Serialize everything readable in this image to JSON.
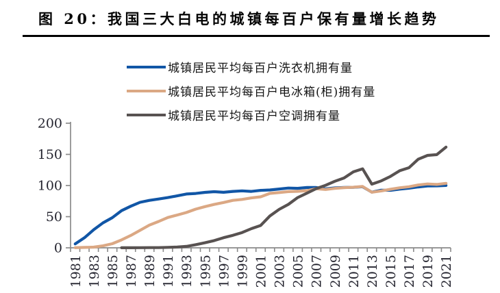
{
  "figure": {
    "title": "图 20：我国三大白电的城镇每百户保有量增长趋势"
  },
  "chart_data": {
    "type": "line",
    "x": [
      1981,
      1982,
      1983,
      1984,
      1985,
      1986,
      1987,
      1988,
      1989,
      1990,
      1991,
      1992,
      1993,
      1994,
      1995,
      1996,
      1997,
      1998,
      1999,
      2000,
      2001,
      2002,
      2003,
      2004,
      2005,
      2006,
      2007,
      2008,
      2009,
      2010,
      2011,
      2012,
      2013,
      2014,
      2015,
      2016,
      2017,
      2018,
      2019,
      2020,
      2021
    ],
    "x_tick_labels": [
      "1981",
      "1983",
      "1985",
      "1987",
      "1989",
      "1991",
      "1993",
      "1995",
      "1997",
      "1999",
      "2001",
      "2003",
      "2005",
      "2007",
      "2009",
      "2011",
      "2013",
      "2015",
      "2017",
      "2019",
      "2021"
    ],
    "series": [
      {
        "name": "城镇居民平均每百户洗衣机拥有量",
        "color": "#1156a6",
        "values": [
          6.3,
          16.1,
          29.0,
          40.1,
          48.3,
          59.7,
          66.8,
          73.1,
          76.2,
          78.4,
          80.7,
          83.4,
          86.4,
          87.3,
          89.0,
          90.1,
          89.1,
          90.6,
          91.4,
          90.5,
          92.2,
          92.9,
          94.4,
          95.9,
          95.5,
          96.8,
          96.8,
          94.7,
          96.1,
          96.9,
          97.1,
          98.0,
          89.3,
          92.5,
          92.3,
          94.2,
          95.7,
          97.7,
          99.2,
          99.4,
          100.1
        ]
      },
      {
        "name": "城镇居民平均每百户电冰箱(柜)拥有量",
        "color": "#dba884",
        "values": [
          0.2,
          0.7,
          1.1,
          3.2,
          6.6,
          12.7,
          19.9,
          28.1,
          36.5,
          42.3,
          48.7,
          52.6,
          56.7,
          62.1,
          66.2,
          69.7,
          72.8,
          76.1,
          77.7,
          80.1,
          81.9,
          87.4,
          88.7,
          90.2,
          90.7,
          91.8,
          95.0,
          93.6,
          95.4,
          96.6,
          97.2,
          98.5,
          89.2,
          91.3,
          94.0,
          96.4,
          98.0,
          100.9,
          102.5,
          101.8,
          103.5
        ]
      },
      {
        "name": "城镇居民平均每百户空调拥有量",
        "color": "#585251",
        "values": [
          null,
          null,
          null,
          null,
          null,
          0.1,
          0.1,
          0.2,
          0.3,
          0.3,
          0.8,
          1.2,
          2.3,
          5.0,
          8.1,
          11.6,
          16.3,
          20.0,
          24.5,
          30.8,
          35.8,
          51.1,
          61.8,
          69.8,
          80.7,
          87.8,
          95.1,
          100.3,
          106.8,
          112.1,
          122.0,
          126.8,
          102.2,
          107.4,
          114.6,
          123.7,
          128.6,
          142.2,
          148.3,
          149.6,
          161.7
        ]
      }
    ],
    "ylim": [
      0,
      200
    ],
    "yticks": [
      0,
      50,
      100,
      150,
      200
    ],
    "grid": false,
    "legend_position": "top",
    "axis_color": "#8a8a8a",
    "tick_label_color": "#23232e"
  }
}
